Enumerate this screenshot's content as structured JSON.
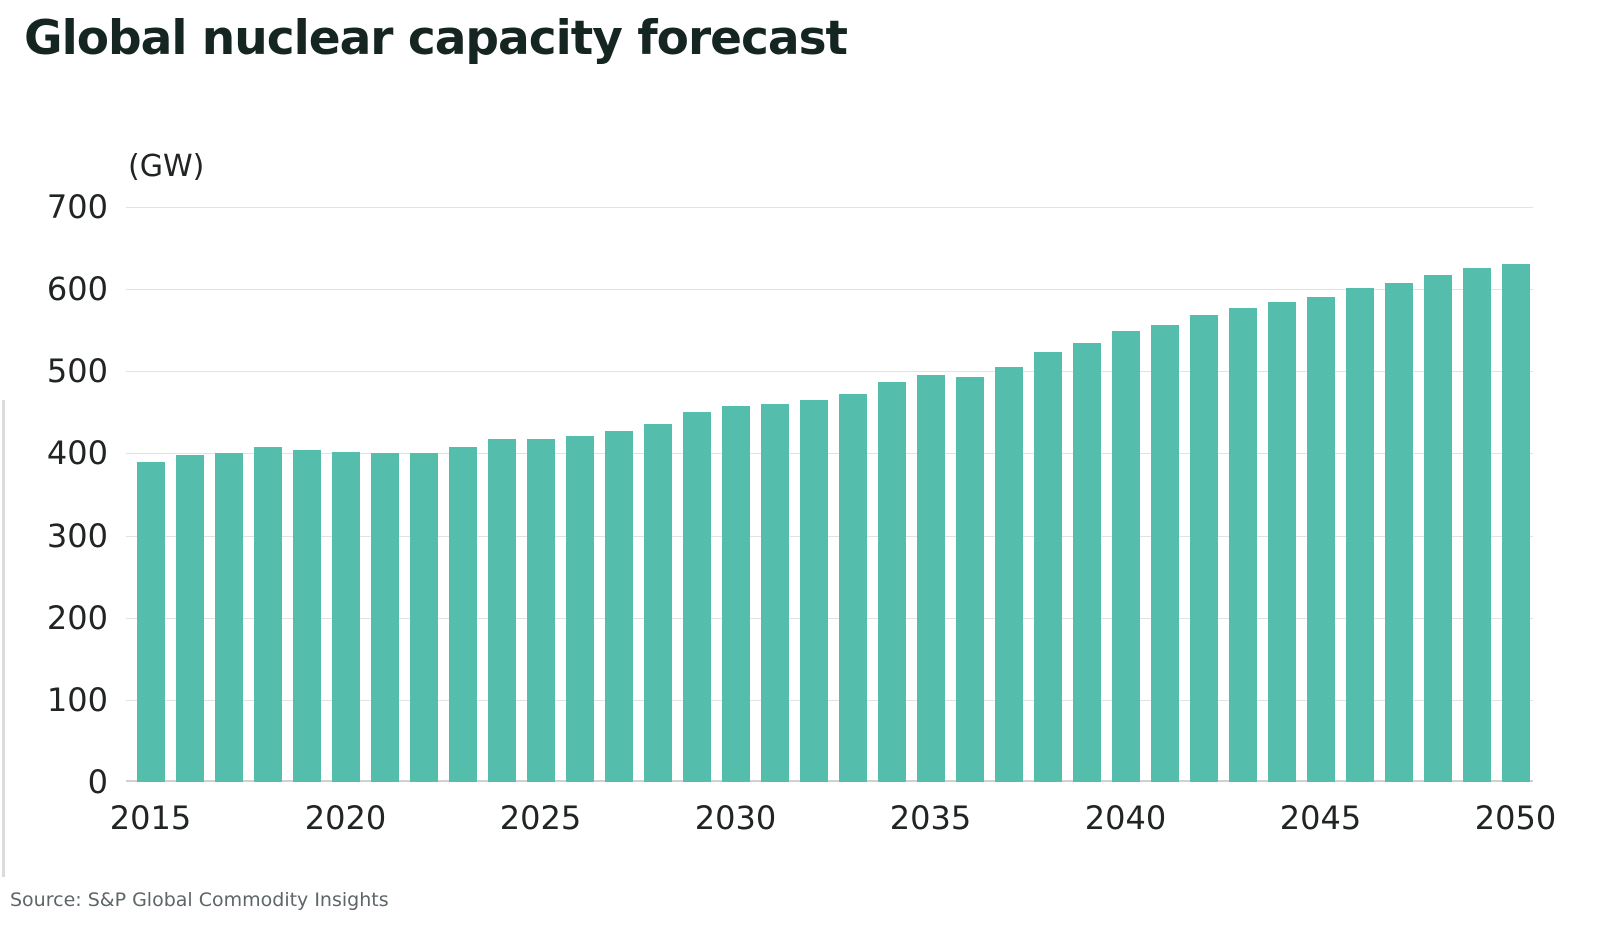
{
  "title": "Global nuclear capacity forecast",
  "y_axis": {
    "unit_label": "(GW)",
    "ticks": [
      700,
      600,
      500,
      400,
      300,
      200,
      100,
      0
    ]
  },
  "x_axis": {
    "tick_labels": [
      "2015",
      "2020",
      "2025",
      "2030",
      "2035",
      "2040",
      "2045",
      "2050"
    ]
  },
  "source": "Source: S&P Global Commodity Insights",
  "colors": {
    "bar": "#55BDAC",
    "title_text": "#152521",
    "axis_text": "#212424",
    "gridline": "#E2E2E2",
    "baseline": "#D0D0D0",
    "source_text": "#5D6667",
    "background": "#FFFFFF",
    "edge_line": "#DBDBDB"
  },
  "chart_data": {
    "type": "bar",
    "title": "Global nuclear capacity forecast",
    "unit": "GW",
    "ylabel": "(GW)",
    "xlabel": "",
    "ylim": [
      0,
      700
    ],
    "ytick_interval": 100,
    "grid": "horizontal",
    "legend": "none",
    "source": "S&P Global Commodity Insights",
    "categories": [
      2015,
      2016,
      2017,
      2018,
      2019,
      2020,
      2021,
      2022,
      2023,
      2024,
      2025,
      2026,
      2027,
      2028,
      2029,
      2030,
      2031,
      2032,
      2033,
      2034,
      2035,
      2036,
      2037,
      2038,
      2039,
      2040,
      2041,
      2042,
      2043,
      2044,
      2045,
      2046,
      2047,
      2048,
      2049,
      2050
    ],
    "values": [
      390,
      398,
      400,
      408,
      404,
      402,
      400,
      401,
      408,
      418,
      417,
      421,
      427,
      436,
      450,
      458,
      460,
      465,
      472,
      487,
      495,
      493,
      505,
      523,
      534,
      549,
      556,
      569,
      577,
      584,
      590,
      601,
      607,
      617,
      626,
      631
    ]
  }
}
